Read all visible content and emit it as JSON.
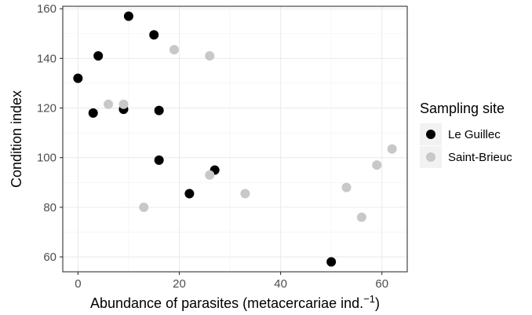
{
  "chart_data": {
    "type": "scatter",
    "title": "",
    "xlabel": "Abundance of parasites (metacercariae ind.",
    "xlabel_superscript": "−1",
    "xlabel_suffix": ")",
    "ylabel": "Condition index",
    "xlim": [
      -3,
      65
    ],
    "ylim": [
      54,
      161
    ],
    "xticks": [
      0,
      20,
      40,
      60
    ],
    "yticks": [
      60,
      80,
      100,
      120,
      140,
      160
    ],
    "grid": true,
    "legend": {
      "title": "Sampling site",
      "position": "right"
    },
    "series": [
      {
        "name": "Le Guillec",
        "color": "#000000",
        "points": [
          {
            "x": 0,
            "y": 132
          },
          {
            "x": 3,
            "y": 118
          },
          {
            "x": 4,
            "y": 141
          },
          {
            "x": 9,
            "y": 119.5
          },
          {
            "x": 10,
            "y": 157
          },
          {
            "x": 15,
            "y": 149.5
          },
          {
            "x": 16,
            "y": 119
          },
          {
            "x": 16,
            "y": 99
          },
          {
            "x": 22,
            "y": 85.5
          },
          {
            "x": 27,
            "y": 95
          },
          {
            "x": 50,
            "y": 58
          }
        ]
      },
      {
        "name": "Saint-Brieuc",
        "color": "#c8c8c8",
        "points": [
          {
            "x": 6,
            "y": 121.5
          },
          {
            "x": 9,
            "y": 121.5
          },
          {
            "x": 13,
            "y": 80
          },
          {
            "x": 19,
            "y": 143.5
          },
          {
            "x": 26,
            "y": 141
          },
          {
            "x": 26,
            "y": 93
          },
          {
            "x": 33,
            "y": 85.5
          },
          {
            "x": 53,
            "y": 88
          },
          {
            "x": 56,
            "y": 76
          },
          {
            "x": 59,
            "y": 97
          },
          {
            "x": 62,
            "y": 103.5
          }
        ]
      }
    ]
  }
}
